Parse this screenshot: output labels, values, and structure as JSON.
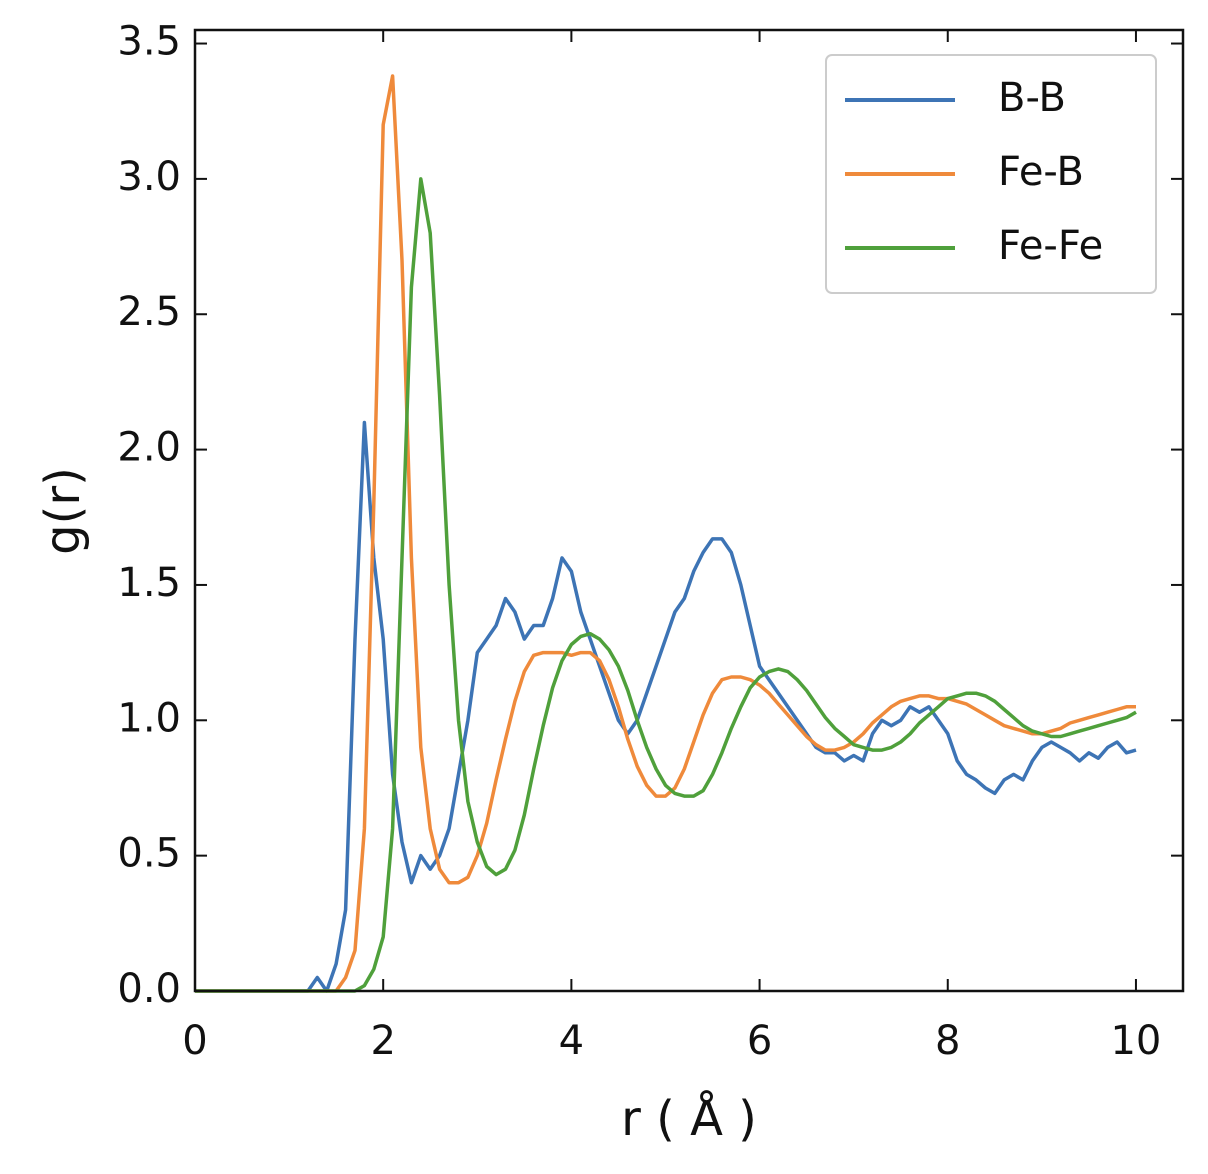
{
  "chart_data": {
    "type": "line",
    "xlabel": "r ( Å )",
    "ylabel": "g(r)",
    "x": [
      0,
      0.1,
      0.2,
      0.3,
      0.4,
      0.5,
      0.6,
      0.7,
      0.8,
      0.9,
      1,
      1.1,
      1.2,
      1.3,
      1.4,
      1.5,
      1.6,
      1.7,
      1.8,
      1.9,
      2,
      2.1,
      2.2,
      2.3,
      2.4,
      2.5,
      2.6,
      2.7,
      2.8,
      2.9,
      3,
      3.1,
      3.2,
      3.3,
      3.4,
      3.5,
      3.6,
      3.7,
      3.8,
      3.9,
      4,
      4.1,
      4.2,
      4.3,
      4.4,
      4.5,
      4.6,
      4.7,
      4.8,
      4.9,
      5,
      5.1,
      5.2,
      5.3,
      5.4,
      5.5,
      5.6,
      5.7,
      5.8,
      5.9,
      6,
      6.1,
      6.2,
      6.3,
      6.4,
      6.5,
      6.6,
      6.7,
      6.8,
      6.9,
      7,
      7.1,
      7.2,
      7.3,
      7.4,
      7.5,
      7.6,
      7.7,
      7.8,
      7.9,
      8,
      8.1,
      8.2,
      8.3,
      8.4,
      8.5,
      8.6,
      8.7,
      8.8,
      8.9,
      9,
      9.1,
      9.2,
      9.3,
      9.4,
      9.5,
      9.6,
      9.7,
      9.8,
      9.9,
      10
    ],
    "series": [
      {
        "name": "B-B",
        "color": "#3d74b5",
        "values": [
          0,
          0,
          0,
          0,
          0,
          0,
          0,
          0,
          0,
          0,
          0,
          0,
          0,
          0.05,
          0.0,
          0.1,
          0.3,
          1.3,
          2.1,
          1.6,
          1.3,
          0.8,
          0.55,
          0.4,
          0.5,
          0.45,
          0.5,
          0.6,
          0.8,
          1.0,
          1.25,
          1.3,
          1.35,
          1.45,
          1.4,
          1.3,
          1.35,
          1.35,
          1.45,
          1.6,
          1.55,
          1.4,
          1.3,
          1.2,
          1.1,
          1.0,
          0.95,
          1.0,
          1.1,
          1.2,
          1.3,
          1.4,
          1.45,
          1.55,
          1.62,
          1.67,
          1.67,
          1.62,
          1.5,
          1.35,
          1.2,
          1.15,
          1.1,
          1.05,
          1.0,
          0.95,
          0.9,
          0.88,
          0.88,
          0.85,
          0.87,
          0.85,
          0.95,
          1.0,
          0.98,
          1.0,
          1.05,
          1.03,
          1.05,
          1.0,
          0.95,
          0.85,
          0.8,
          0.78,
          0.75,
          0.73,
          0.78,
          0.8,
          0.78,
          0.85,
          0.9,
          0.92,
          0.9,
          0.88,
          0.85,
          0.88,
          0.86,
          0.9,
          0.92,
          0.88,
          0.89
        ]
      },
      {
        "name": "Fe-B",
        "color": "#ef8a3b",
        "values": [
          0,
          0,
          0,
          0,
          0,
          0,
          0,
          0,
          0,
          0,
          0,
          0,
          0,
          0,
          0,
          0,
          0.05,
          0.15,
          0.6,
          1.8,
          3.2,
          3.38,
          2.7,
          1.6,
          0.9,
          0.6,
          0.45,
          0.4,
          0.4,
          0.42,
          0.5,
          0.62,
          0.78,
          0.93,
          1.07,
          1.18,
          1.24,
          1.25,
          1.25,
          1.25,
          1.24,
          1.25,
          1.25,
          1.22,
          1.15,
          1.05,
          0.93,
          0.83,
          0.76,
          0.72,
          0.72,
          0.75,
          0.82,
          0.92,
          1.02,
          1.1,
          1.15,
          1.16,
          1.16,
          1.15,
          1.13,
          1.1,
          1.06,
          1.02,
          0.98,
          0.94,
          0.91,
          0.89,
          0.89,
          0.9,
          0.92,
          0.95,
          0.99,
          1.02,
          1.05,
          1.07,
          1.08,
          1.09,
          1.09,
          1.08,
          1.08,
          1.07,
          1.06,
          1.04,
          1.02,
          1.0,
          0.98,
          0.97,
          0.96,
          0.95,
          0.95,
          0.96,
          0.97,
          0.99,
          1.0,
          1.01,
          1.02,
          1.03,
          1.04,
          1.05,
          1.05
        ]
      },
      {
        "name": "Fe-Fe",
        "color": "#4fa03b",
        "values": [
          0,
          0,
          0,
          0,
          0,
          0,
          0,
          0,
          0,
          0,
          0,
          0,
          0,
          0,
          0,
          0,
          0,
          0,
          0.02,
          0.08,
          0.2,
          0.6,
          1.6,
          2.6,
          3.0,
          2.8,
          2.2,
          1.5,
          1.0,
          0.7,
          0.55,
          0.46,
          0.43,
          0.45,
          0.52,
          0.65,
          0.82,
          0.98,
          1.12,
          1.22,
          1.28,
          1.31,
          1.32,
          1.3,
          1.26,
          1.2,
          1.11,
          1.0,
          0.9,
          0.82,
          0.76,
          0.73,
          0.72,
          0.72,
          0.74,
          0.8,
          0.88,
          0.97,
          1.05,
          1.12,
          1.16,
          1.18,
          1.19,
          1.18,
          1.15,
          1.11,
          1.06,
          1.01,
          0.97,
          0.94,
          0.91,
          0.9,
          0.89,
          0.89,
          0.9,
          0.92,
          0.95,
          0.99,
          1.02,
          1.05,
          1.08,
          1.09,
          1.1,
          1.1,
          1.09,
          1.07,
          1.04,
          1.01,
          0.98,
          0.96,
          0.95,
          0.94,
          0.94,
          0.95,
          0.96,
          0.97,
          0.98,
          0.99,
          1.0,
          1.01,
          1.03
        ]
      }
    ],
    "xlim": [
      0,
      10.5
    ],
    "ylim": [
      0,
      3.55
    ],
    "xticks": [
      0,
      2,
      4,
      6,
      8,
      10
    ],
    "yticks": [
      {
        "value": 0,
        "label": "0.0"
      },
      {
        "value": 0.5,
        "label": "0.5"
      },
      {
        "value": 1,
        "label": "1.0"
      },
      {
        "value": 1.5,
        "label": "1.5"
      },
      {
        "value": 2,
        "label": "2.0"
      },
      {
        "value": 2.5,
        "label": "2.5"
      },
      {
        "value": 3,
        "label": "3.0"
      },
      {
        "value": 3.5,
        "label": "3.5"
      }
    ],
    "grid": false,
    "legend": "upper right"
  }
}
